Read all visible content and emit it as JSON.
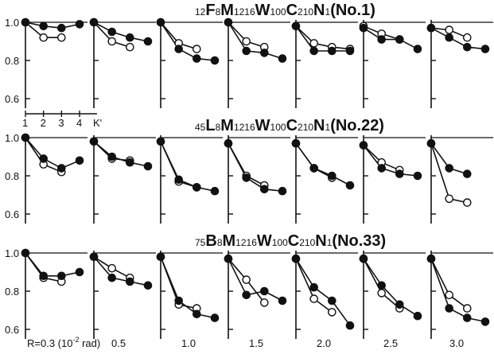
{
  "chart_data": {
    "type": "line",
    "x_ticks": [
      "1",
      "2",
      "3",
      "4"
    ],
    "x_axis_label": "K'",
    "y_ticks": [
      "1.0",
      "0.8",
      "0.6"
    ],
    "ylim": [
      0.55,
      1.02
    ],
    "xlim": [
      1,
      4
    ],
    "markers": {
      "filled": "#111111",
      "open": "#ffffff"
    },
    "r_prefix": "R=0.3 (10",
    "r_exp": "-2",
    "r_suffix": " rad)",
    "r_labels": [
      "0.3",
      "0.5",
      "1.0",
      "1.5",
      "2.0",
      "2.5",
      "3.0"
    ],
    "rows": [
      {
        "title_parts": [
          {
            "t": "12",
            "small": true
          },
          {
            "t": "F",
            "small": false
          },
          {
            "t": "8",
            "small": true
          },
          {
            "t": "M",
            "small": false
          },
          {
            "t": "1216",
            "small": true
          },
          {
            "t": "W",
            "small": false
          },
          {
            "t": "100",
            "small": true
          },
          {
            "t": "C",
            "small": false
          },
          {
            "t": "210",
            "small": true
          },
          {
            "t": "N",
            "small": false
          },
          {
            "t": "1",
            "small": true
          },
          {
            "t": "(No.1)",
            "small": false
          }
        ],
        "panels": [
          {
            "filled": [
              [
                1,
                1.0
              ],
              [
                2,
                0.98
              ],
              [
                3,
                0.97
              ],
              [
                4,
                0.99
              ]
            ],
            "open": [
              [
                1,
                1.0
              ],
              [
                2,
                0.92
              ],
              [
                3,
                0.92
              ]
            ]
          },
          {
            "filled": [
              [
                1,
                1.0
              ],
              [
                2,
                0.95
              ],
              [
                3,
                0.92
              ],
              [
                4,
                0.9
              ]
            ],
            "open": [
              [
                1,
                1.0
              ],
              [
                2,
                0.9
              ],
              [
                3,
                0.87
              ]
            ]
          },
          {
            "filled": [
              [
                1,
                1.0
              ],
              [
                2,
                0.86
              ],
              [
                3,
                0.81
              ],
              [
                4,
                0.8
              ]
            ],
            "open": [
              [
                1,
                1.0
              ],
              [
                2,
                0.89
              ],
              [
                3,
                0.86
              ]
            ]
          },
          {
            "filled": [
              [
                1,
                1.0
              ],
              [
                2,
                0.85
              ],
              [
                3,
                0.84
              ],
              [
                4,
                0.81
              ]
            ],
            "open": [
              [
                1,
                1.0
              ],
              [
                2,
                0.9
              ],
              [
                3,
                0.87
              ]
            ]
          },
          {
            "filled": [
              [
                1,
                0.98
              ],
              [
                2,
                0.85
              ],
              [
                3,
                0.85
              ],
              [
                4,
                0.85
              ]
            ],
            "open": [
              [
                1,
                0.98
              ],
              [
                2,
                0.89
              ],
              [
                3,
                0.87
              ],
              [
                4,
                0.86
              ]
            ]
          },
          {
            "filled": [
              [
                1,
                0.97
              ],
              [
                2,
                0.91
              ],
              [
                3,
                0.91
              ],
              [
                4,
                0.86
              ]
            ],
            "open": [
              [
                1,
                0.98
              ],
              [
                2,
                0.94
              ],
              [
                3,
                0.91
              ]
            ]
          },
          {
            "filled": [
              [
                1,
                0.97
              ],
              [
                2,
                0.92
              ],
              [
                3,
                0.87
              ],
              [
                4,
                0.86
              ]
            ],
            "open": [
              [
                1,
                0.97
              ],
              [
                2,
                0.96
              ],
              [
                3,
                0.92
              ]
            ]
          }
        ]
      },
      {
        "title_parts": [
          {
            "t": "45",
            "small": true
          },
          {
            "t": "L",
            "small": false
          },
          {
            "t": "8",
            "small": true
          },
          {
            "t": "M",
            "small": false
          },
          {
            "t": "1216",
            "small": true
          },
          {
            "t": "W",
            "small": false
          },
          {
            "t": "100",
            "small": true
          },
          {
            "t": "C",
            "small": false
          },
          {
            "t": "210",
            "small": true
          },
          {
            "t": "N",
            "small": false
          },
          {
            "t": "1",
            "small": true
          },
          {
            "t": "(No.22)",
            "small": false
          }
        ],
        "panels": [
          {
            "filled": [
              [
                1,
                1.0
              ],
              [
                2,
                0.89
              ],
              [
                3,
                0.84
              ],
              [
                4,
                0.88
              ]
            ],
            "open": [
              [
                1,
                1.0
              ],
              [
                2,
                0.86
              ],
              [
                3,
                0.82
              ]
            ]
          },
          {
            "filled": [
              [
                1,
                0.98
              ],
              [
                2,
                0.9
              ],
              [
                3,
                0.87
              ],
              [
                4,
                0.85
              ]
            ],
            "open": [
              [
                1,
                0.98
              ],
              [
                2,
                0.89
              ],
              [
                3,
                0.88
              ]
            ]
          },
          {
            "filled": [
              [
                1,
                0.98
              ],
              [
                2,
                0.78
              ],
              [
                3,
                0.74
              ],
              [
                4,
                0.72
              ]
            ],
            "open": [
              [
                1,
                0.98
              ],
              [
                2,
                0.77
              ],
              [
                3,
                0.74
              ]
            ]
          },
          {
            "filled": [
              [
                1,
                0.97
              ],
              [
                2,
                0.79
              ],
              [
                3,
                0.73
              ],
              [
                4,
                0.72
              ]
            ],
            "open": [
              [
                1,
                0.97
              ],
              [
                2,
                0.8
              ],
              [
                3,
                0.75
              ]
            ]
          },
          {
            "filled": [
              [
                1,
                0.97
              ],
              [
                2,
                0.84
              ],
              [
                3,
                0.8
              ],
              [
                4,
                0.75
              ]
            ],
            "open": [
              [
                1,
                0.97
              ],
              [
                2,
                0.84
              ],
              [
                3,
                0.79
              ]
            ]
          },
          {
            "filled": [
              [
                1,
                0.96
              ],
              [
                2,
                0.84
              ],
              [
                3,
                0.81
              ],
              [
                4,
                0.8
              ]
            ],
            "open": [
              [
                1,
                0.96
              ],
              [
                2,
                0.87
              ],
              [
                3,
                0.83
              ]
            ]
          },
          {
            "filled": [
              [
                1,
                0.97
              ],
              [
                2,
                0.84
              ],
              [
                3,
                0.81
              ]
            ],
            "open": [
              [
                1,
                0.97
              ],
              [
                2,
                0.68
              ],
              [
                3,
                0.66
              ]
            ]
          }
        ]
      },
      {
        "title_parts": [
          {
            "t": "75",
            "small": true
          },
          {
            "t": "B",
            "small": false
          },
          {
            "t": "8",
            "small": true
          },
          {
            "t": "M",
            "small": false
          },
          {
            "t": "1216",
            "small": true
          },
          {
            "t": "W",
            "small": false
          },
          {
            "t": "100",
            "small": true
          },
          {
            "t": "C",
            "small": false
          },
          {
            "t": "210",
            "small": true
          },
          {
            "t": "N",
            "small": false
          },
          {
            "t": "1",
            "small": true
          },
          {
            "t": "(No.33)",
            "small": false
          }
        ],
        "panels": [
          {
            "filled": [
              [
                1,
                1.0
              ],
              [
                2,
                0.88
              ],
              [
                3,
                0.88
              ],
              [
                4,
                0.9
              ]
            ],
            "open": [
              [
                1,
                1.0
              ],
              [
                2,
                0.87
              ],
              [
                3,
                0.85
              ]
            ]
          },
          {
            "filled": [
              [
                1,
                0.98
              ],
              [
                2,
                0.87
              ],
              [
                3,
                0.85
              ],
              [
                4,
                0.83
              ]
            ],
            "open": [
              [
                1,
                0.98
              ],
              [
                2,
                0.92
              ],
              [
                3,
                0.87
              ]
            ]
          },
          {
            "filled": [
              [
                1,
                0.98
              ],
              [
                2,
                0.75
              ],
              [
                3,
                0.68
              ],
              [
                4,
                0.66
              ]
            ],
            "open": [
              [
                1,
                0.98
              ],
              [
                2,
                0.73
              ],
              [
                3,
                0.71
              ]
            ]
          },
          {
            "filled": [
              [
                1,
                0.97
              ],
              [
                2,
                0.78
              ],
              [
                3,
                0.8
              ],
              [
                4,
                0.75
              ]
            ],
            "open": [
              [
                1,
                0.97
              ],
              [
                2,
                0.86
              ],
              [
                3,
                0.74
              ]
            ]
          },
          {
            "filled": [
              [
                1,
                0.97
              ],
              [
                2,
                0.82
              ],
              [
                3,
                0.75
              ],
              [
                4,
                0.62
              ]
            ],
            "open": [
              [
                1,
                0.97
              ],
              [
                2,
                0.76
              ],
              [
                3,
                0.69
              ]
            ]
          },
          {
            "filled": [
              [
                1,
                0.97
              ],
              [
                2,
                0.83
              ],
              [
                3,
                0.73
              ],
              [
                4,
                0.67
              ]
            ],
            "open": [
              [
                1,
                0.97
              ],
              [
                2,
                0.79
              ],
              [
                3,
                0.71
              ]
            ]
          },
          {
            "filled": [
              [
                1,
                0.97
              ],
              [
                2,
                0.71
              ],
              [
                3,
                0.66
              ],
              [
                4,
                0.64
              ]
            ],
            "open": [
              [
                1,
                0.97
              ],
              [
                2,
                0.78
              ],
              [
                3,
                0.71
              ]
            ]
          }
        ]
      }
    ]
  }
}
